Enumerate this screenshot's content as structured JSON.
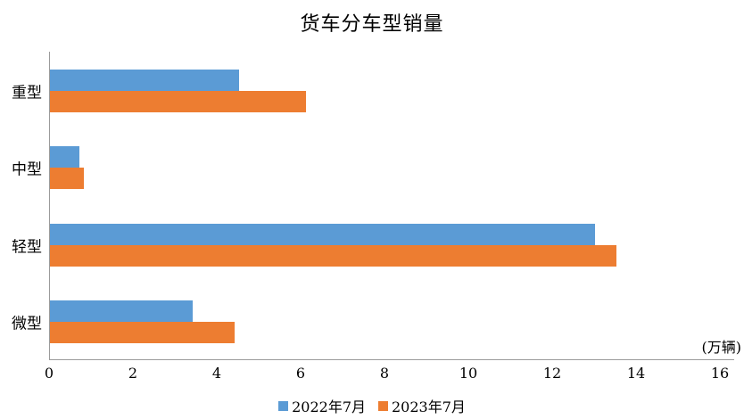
{
  "chart_data": {
    "type": "bar",
    "orientation": "horizontal",
    "title": "货车分车型销量",
    "unit_label": "(万辆)",
    "categories": [
      "重型",
      "中型",
      "轻型",
      "微型"
    ],
    "series": [
      {
        "name": "2022年7月",
        "color": "#5B9BD5",
        "values": [
          4.5,
          0.7,
          13.0,
          3.4
        ]
      },
      {
        "name": "2023年7月",
        "color": "#ED7D31",
        "values": [
          6.1,
          0.8,
          13.5,
          4.4
        ]
      }
    ],
    "xlim": [
      0,
      16
    ],
    "xticks": [
      0,
      2,
      4,
      6,
      8,
      10,
      12,
      14,
      16
    ],
    "legend_position": "bottom",
    "grid": false,
    "axis_color": "#9B9B9B",
    "background_color": "#FFFFFF",
    "text_color": "#000000"
  }
}
